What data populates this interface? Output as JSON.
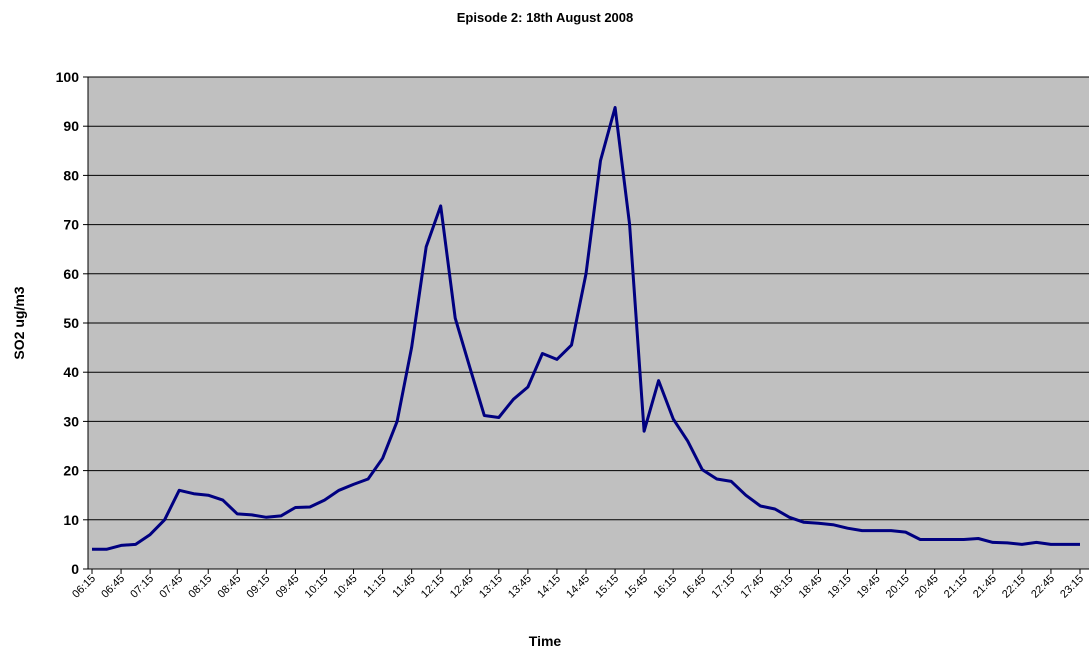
{
  "chart_data": {
    "type": "line",
    "title": "Episode 2: 18th August 2008",
    "x_label": "Time",
    "y_label": "SO2 ug/m3",
    "categories": [
      "06:15",
      null,
      "06:45",
      null,
      "07:15",
      null,
      "07:45",
      null,
      "08:15",
      null,
      "08:45",
      null,
      "09:15",
      null,
      "09:45",
      null,
      "10:15",
      null,
      "10:45",
      null,
      "11:15",
      null,
      "11:45",
      null,
      "12:15",
      null,
      "12:45",
      null,
      "13:15",
      null,
      "13:45",
      null,
      "14:15",
      null,
      "14:45",
      null,
      "15:15",
      null,
      "15:45",
      null,
      "16:15",
      null,
      "16:45",
      null,
      "17:15",
      null,
      "17:45",
      null,
      "18:15",
      null,
      "18:45",
      null,
      "19:15",
      null,
      "19:45",
      null,
      "20:15",
      null,
      "20:45",
      null,
      "21:15",
      null,
      "21:45",
      null,
      "22:15",
      null,
      "22:45",
      null,
      "23:15"
    ],
    "series": [
      {
        "name": "SO2",
        "color": "#000080",
        "values": [
          4,
          4,
          4.8,
          5,
          7,
          10,
          16,
          15.3,
          15,
          14,
          11.2,
          11,
          10.5,
          10.8,
          12.5,
          12.6,
          14,
          16,
          17.2,
          18.3,
          22.5,
          30,
          45,
          65.5,
          73.8,
          51,
          41,
          31.2,
          30.8,
          34.5,
          37,
          43.8,
          42.6,
          45.5,
          60,
          83,
          93.8,
          70,
          28,
          38.3,
          30.5,
          26,
          20.2,
          18.3,
          17.8,
          15,
          12.8,
          12.2,
          10.5,
          9.5,
          9.3,
          9,
          8.3,
          7.8,
          7.8,
          7.8,
          7.5,
          6,
          6,
          6,
          6,
          6.2,
          5.4,
          5.3,
          5,
          5.4,
          5,
          5,
          5
        ]
      }
    ],
    "ylim": [
      0,
      100
    ],
    "yticks": [
      0,
      10,
      20,
      30,
      40,
      50,
      60,
      70,
      80,
      90,
      100
    ],
    "grid": true
  }
}
